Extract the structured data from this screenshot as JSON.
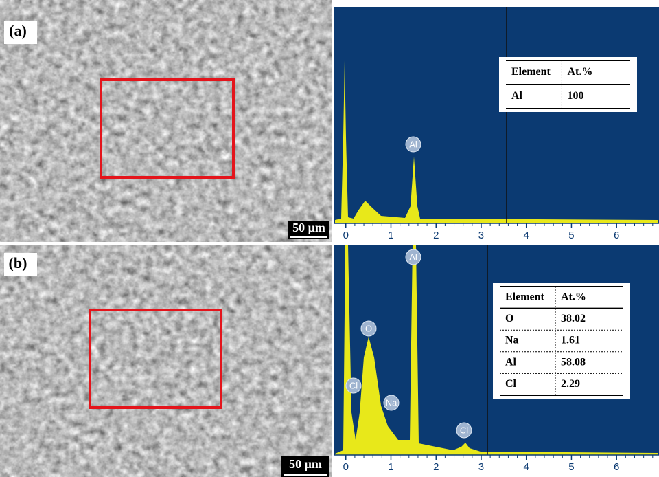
{
  "panels": [
    {
      "label": "(a)",
      "scale_bar": "50 μm",
      "xlim": [
        -0.27,
        6.94
      ],
      "xticks": [
        0,
        1,
        2,
        3,
        4,
        5,
        6
      ],
      "peaks": [
        "Al"
      ],
      "table": {
        "header": [
          "Element",
          "At.%"
        ],
        "rows": [
          [
            "Al",
            "100"
          ]
        ]
      }
    },
    {
      "label": "(b)",
      "scale_bar": "50 μm",
      "xlim": [
        -0.27,
        6.94
      ],
      "xticks": [
        0,
        1,
        2,
        3,
        4,
        5,
        6
      ],
      "peaks": [
        "Al",
        "O",
        "Cl",
        "Na",
        "Cl"
      ],
      "table": {
        "header": [
          "Element",
          "At.%"
        ],
        "rows": [
          [
            "O",
            "38.02"
          ],
          [
            "Na",
            "1.61"
          ],
          [
            "Al",
            "58.08"
          ],
          [
            "Cl",
            "2.29"
          ]
        ]
      }
    }
  ]
}
